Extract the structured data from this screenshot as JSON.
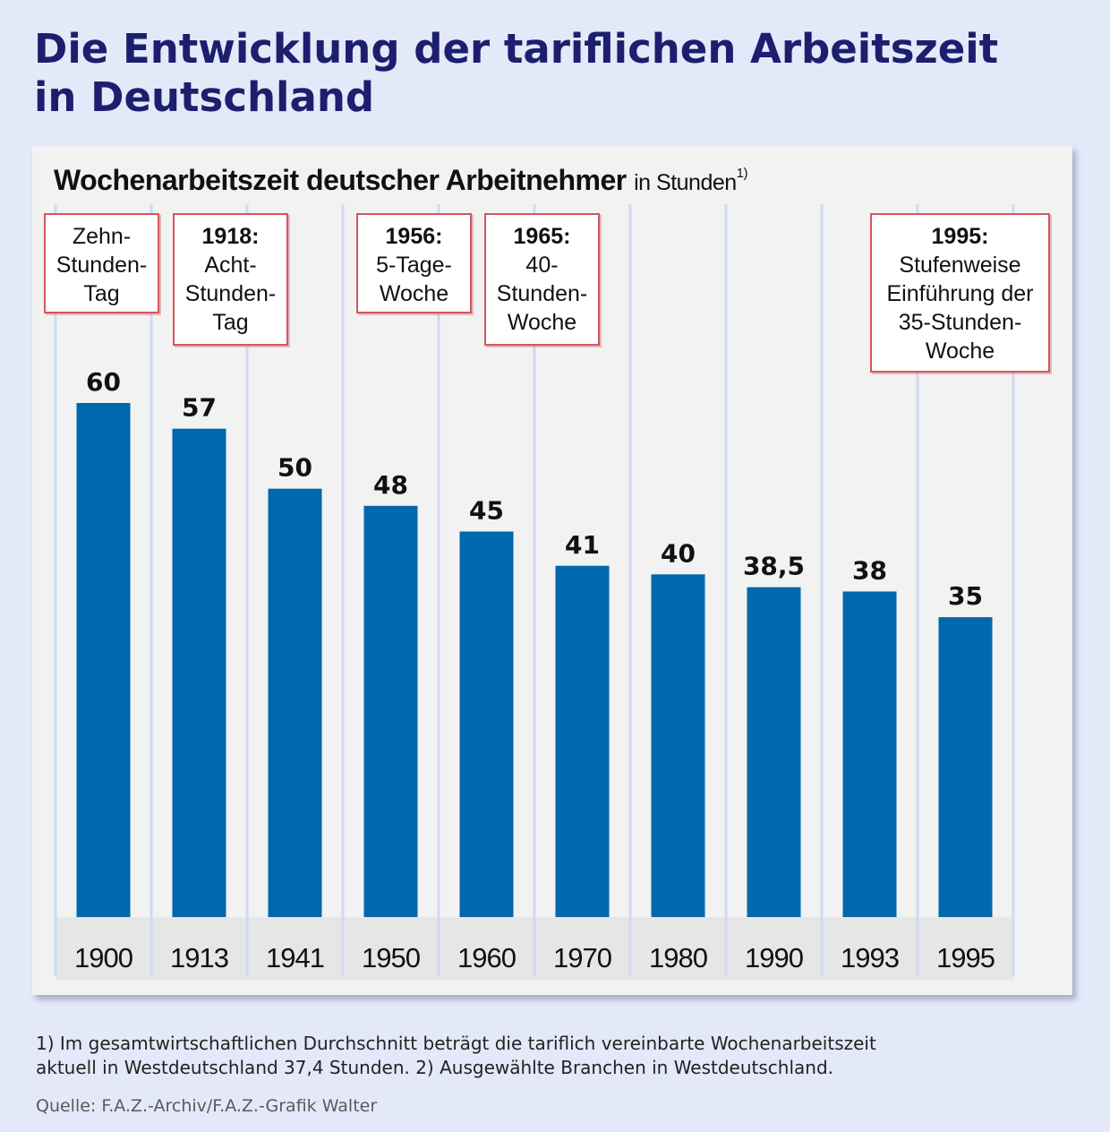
{
  "title_line1": "Die Entwicklung der tariflichen Arbeitszeit",
  "title_line2": "in Deutschland",
  "chart_data": {
    "type": "bar",
    "title": "Wochenarbeitszeit deutscher Arbeitnehmer",
    "unit_label": "in Stunden",
    "unit_footnote_marker": "1)",
    "categories": [
      "1900",
      "1913",
      "1941",
      "1950",
      "1960",
      "1970",
      "1980",
      "1990",
      "1993",
      "1995"
    ],
    "values": [
      60,
      57,
      50,
      48,
      45,
      41,
      40,
      38.5,
      38,
      35
    ],
    "value_labels": [
      "60",
      "57",
      "50",
      "48",
      "45",
      "41",
      "40",
      "38,5",
      "38",
      "35"
    ],
    "ylim": [
      0,
      60
    ],
    "grid": false,
    "bar_color": "#0068ac",
    "annotations": [
      {
        "anchor": "1900",
        "year": "",
        "lines": [
          "Zehn-",
          "Stunden-",
          "Tag"
        ]
      },
      {
        "anchor": "1913",
        "year": "1918:",
        "lines": [
          "Acht-",
          "Stunden-",
          "Tag"
        ]
      },
      {
        "anchor": "1950",
        "year": "1956:",
        "lines": [
          "5-Tage-",
          "Woche"
        ]
      },
      {
        "anchor": "1960",
        "year": "1965:",
        "lines": [
          "40-",
          "Stunden-",
          "Woche"
        ]
      },
      {
        "anchor": "1995",
        "year": "1995:",
        "lines": [
          "Stufenweise",
          "Einführung der",
          "35-Stunden-",
          "Woche"
        ]
      }
    ]
  },
  "footnote_line1": "1) Im gesamtwirtschaftlichen Durchschnitt beträgt die tariflich vereinbarte Wochenarbeitszeit",
  "footnote_line2": "aktuell in Westdeutschland 37,4 Stunden.  2) Ausgewählte Branchen in Westdeutschland.",
  "source": "Quelle: F.A.Z.-Archiv/F.A.Z.-Grafik Walter",
  "colors": {
    "background": "#e3e9f8",
    "title": "#1c1f6e",
    "panel": "#f2f2f2",
    "bar": "#0068ac",
    "callout_border": "#d4555f",
    "separator": "#cfdbf0"
  }
}
